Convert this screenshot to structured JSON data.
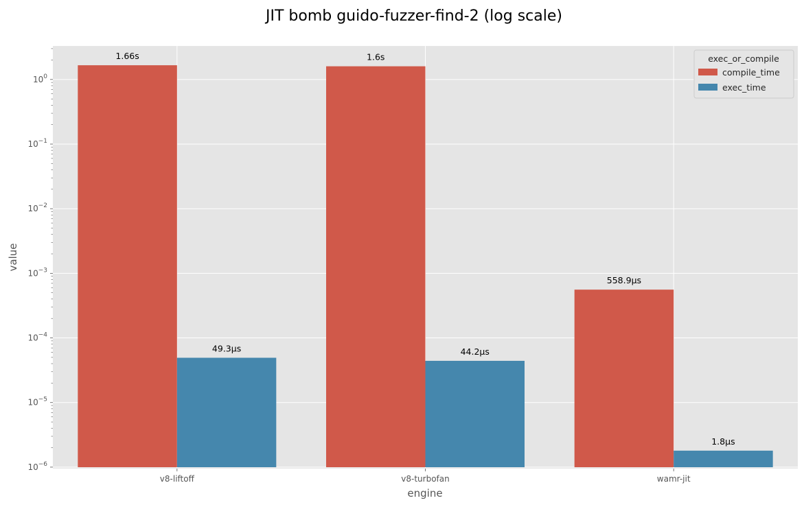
{
  "chart_data": {
    "type": "bar",
    "title": "JIT bomb guido-fuzzer-find-2 (log scale)",
    "xlabel": "engine",
    "ylabel": "value",
    "yscale": "log",
    "ylim": [
      9.5e-07,
      3.3
    ],
    "yticks": [
      {
        "value": 1e-06,
        "base": "10",
        "exp": "−6"
      },
      {
        "value": 1e-05,
        "base": "10",
        "exp": "−5"
      },
      {
        "value": 0.0001,
        "base": "10",
        "exp": "−4"
      },
      {
        "value": 0.001,
        "base": "10",
        "exp": "−3"
      },
      {
        "value": 0.01,
        "base": "10",
        "exp": "−2"
      },
      {
        "value": 0.1,
        "base": "10",
        "exp": "−1"
      },
      {
        "value": 1,
        "base": "10",
        "exp": "0"
      }
    ],
    "categories": [
      "v8-liftoff",
      "v8-turbofan",
      "wamr-jit"
    ],
    "legend": {
      "title": "exec_or_compile",
      "position": "top-right"
    },
    "grid": true,
    "series": [
      {
        "name": "compile_time",
        "color": "#d0594a",
        "values": [
          1.66,
          1.6,
          0.0005589
        ],
        "labels": [
          "1.66s",
          "1.6s",
          "558.9µs"
        ]
      },
      {
        "name": "exec_time",
        "color": "#4587ad",
        "values": [
          4.93e-05,
          4.42e-05,
          1.8e-06
        ],
        "labels": [
          "49.3µs",
          "44.2µs",
          "1.8µs"
        ]
      }
    ]
  }
}
